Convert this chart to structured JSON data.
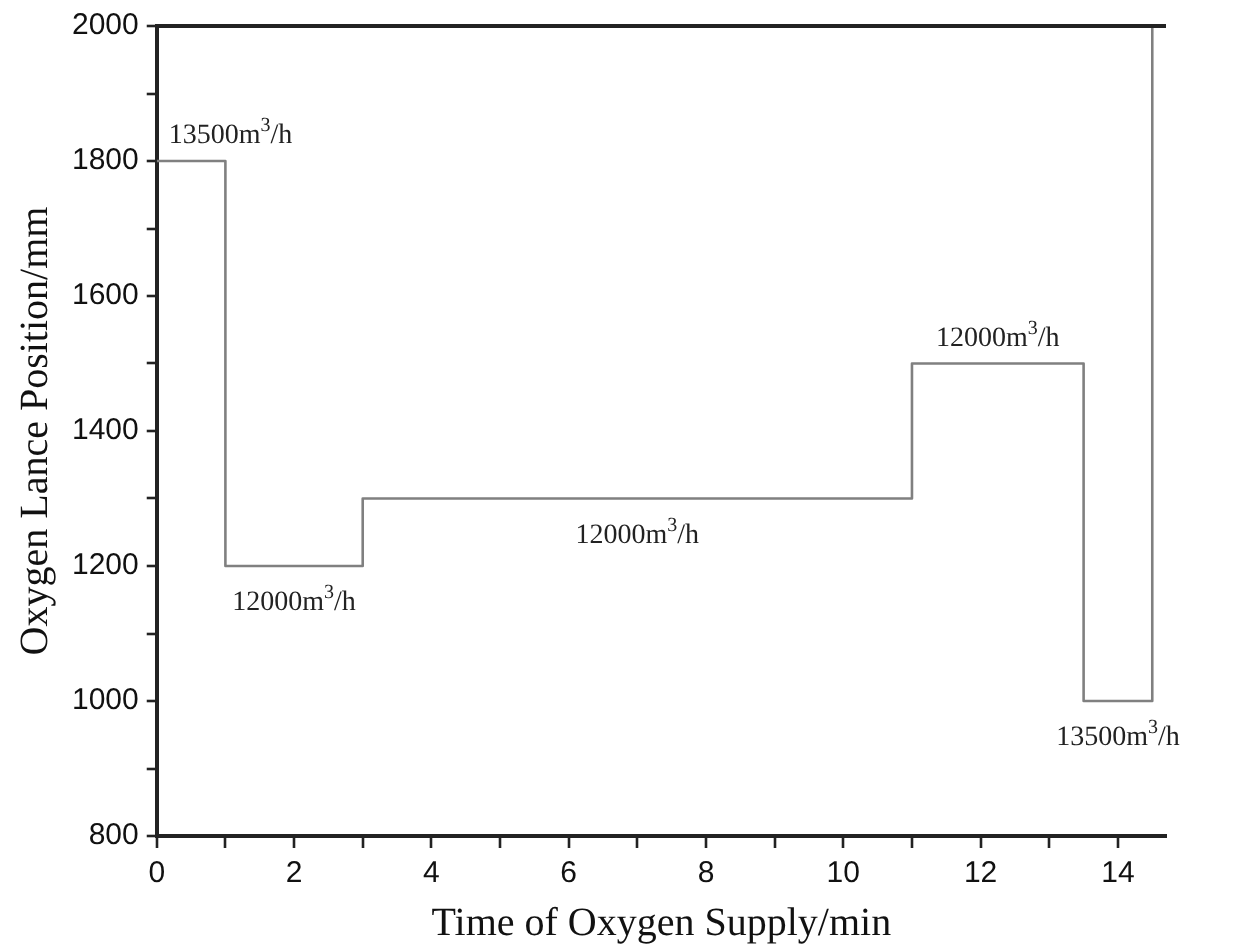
{
  "chart_data": {
    "type": "step",
    "xlabel": "Time of Oxygen Supply/min",
    "ylabel": "Oxygen Lance Position/mm",
    "x": [
      0,
      1,
      3,
      11,
      13.5,
      14.5
    ],
    "series": [
      {
        "color": "#808080",
        "values": [
          1800,
          1200,
          1300,
          1500,
          1000,
          2000
        ]
      }
    ],
    "xlim": [
      0,
      14.7
    ],
    "ylim": [
      800,
      2000
    ],
    "xticks": [
      0,
      {
        "value": 1,
        "label": null
      },
      2,
      {
        "value": 3,
        "label": null
      },
      4,
      {
        "value": 5,
        "label": null
      },
      6,
      {
        "value": 7,
        "label": null
      },
      8,
      {
        "value": 9,
        "label": null
      },
      10,
      {
        "value": 11,
        "label": null
      },
      12,
      {
        "value": 13,
        "label": null
      },
      14
    ],
    "yticks": [
      800,
      {
        "value": 900,
        "label": null
      },
      1000,
      {
        "value": 1100,
        "label": null
      },
      1200,
      {
        "value": 1300,
        "label": null
      },
      1400,
      {
        "value": 1500,
        "label": null
      },
      1600,
      {
        "value": 1700,
        "label": null
      },
      1800,
      {
        "value": 1900,
        "label": null
      },
      2000
    ],
    "annotations": [
      {
        "text": "13500m$^{3}$/h",
        "x": 0.5,
        "y": 1800
      },
      {
        "text": "12000m$^{3}$/h",
        "x": 2,
        "y": 1200
      },
      {
        "text": "12000m$^{3}$/h",
        "x": 7,
        "y": 1300
      },
      {
        "text": "12000m$^{3}$/h",
        "x": 12.25,
        "y": 1500
      },
      {
        "text": "13500m$^{3}$/h",
        "x": 14,
        "y": 1000
      }
    ],
    "legend": false,
    "grid": false,
    "marker": "none"
  }
}
